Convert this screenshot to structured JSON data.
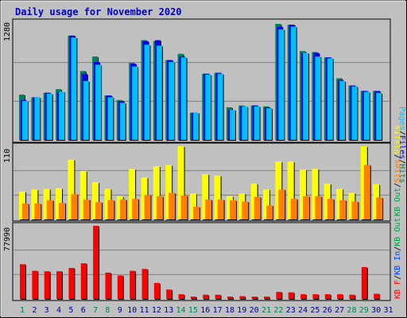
{
  "title": "Daily usage for November 2020",
  "colors": {
    "hits": "#00805c",
    "files": "#0000ff",
    "pages": "#00c0ff",
    "visits": "#ffff00",
    "sites": "#ff8000",
    "kb_in": "#0040ff",
    "kb_out": "#00a040",
    "kb_f": "#ff0000",
    "weekend_label": "#00805c",
    "weekday_label": "#000080",
    "title": "#0000c0",
    "panel_bg": "#c0c0c0"
  },
  "chart_data": [
    {
      "type": "bar",
      "panel": "top",
      "y_max_label": "1280",
      "legend": [
        "Pages",
        "/",
        "Files",
        "/",
        "Hits"
      ],
      "ylim": [
        0,
        1280
      ],
      "categories": [
        "1",
        "2",
        "3",
        "4",
        "5",
        "6",
        "7",
        "8",
        "9",
        "10",
        "11",
        "12",
        "13",
        "14",
        "15",
        "16",
        "17",
        "18",
        "19",
        "20",
        "21",
        "22",
        "23",
        "24",
        "25",
        "26",
        "27",
        "28",
        "29",
        "30",
        "31"
      ],
      "series": [
        {
          "name": "Hits",
          "values": [
            500,
            470,
            520,
            560,
            1150,
            760,
            920,
            490,
            440,
            850,
            1100,
            1090,
            880,
            950,
            300,
            730,
            740,
            360,
            380,
            380,
            370,
            1280,
            1270,
            980,
            970,
            910,
            680,
            600,
            540,
            540,
            0
          ]
        },
        {
          "name": "Files",
          "values": [
            440,
            470,
            520,
            530,
            1150,
            730,
            860,
            490,
            430,
            840,
            1090,
            1100,
            880,
            920,
            300,
            730,
            740,
            330,
            370,
            380,
            360,
            1250,
            1270,
            960,
            960,
            910,
            660,
            600,
            540,
            540,
            0
          ]
        },
        {
          "name": "Pages",
          "values": [
            430,
            470,
            510,
            530,
            1130,
            650,
            830,
            470,
            410,
            810,
            1050,
            1040,
            860,
            910,
            300,
            720,
            730,
            330,
            370,
            370,
            350,
            1220,
            1250,
            960,
            920,
            900,
            650,
            590,
            530,
            520,
            0
          ]
        }
      ]
    },
    {
      "type": "bar",
      "panel": "middle",
      "y_max_label": "110",
      "legend": [
        "Visits",
        "/",
        "Sites",
        "/",
        "KB Out"
      ],
      "ylim": [
        0,
        110
      ],
      "series": [
        {
          "name": "Visits",
          "values": [
            42,
            45,
            46,
            47,
            90,
            73,
            56,
            46,
            35,
            76,
            63,
            80,
            82,
            110,
            39,
            68,
            66,
            35,
            39,
            54,
            45,
            87,
            87,
            75,
            76,
            54,
            46,
            40,
            110,
            53,
            0
          ]
        },
        {
          "name": "Sites",
          "values": [
            24,
            24,
            29,
            25,
            38,
            30,
            26,
            29,
            30,
            31,
            37,
            35,
            40,
            36,
            19,
            30,
            30,
            29,
            27,
            34,
            21,
            45,
            31,
            35,
            35,
            31,
            29,
            27,
            82,
            33,
            0
          ]
        }
      ]
    },
    {
      "type": "bar",
      "panel": "bottom",
      "y_max_label": "77990",
      "legend": [
        "KB F",
        "/",
        "KB In",
        "/",
        "KB Out"
      ],
      "ylim": [
        0,
        77990
      ],
      "series": [
        {
          "name": "KB F",
          "values": [
            37000,
            30000,
            29500,
            29500,
            33000,
            38000,
            77990,
            28000,
            25000,
            30000,
            32000,
            17000,
            10000,
            5000,
            2500,
            4500,
            4500,
            2500,
            3000,
            2500,
            2500,
            7500,
            7000,
            5000,
            5000,
            5000,
            5000,
            4500,
            34000,
            5500,
            0
          ]
        }
      ]
    }
  ],
  "weekend_days": [
    "1",
    "7",
    "8",
    "14",
    "15",
    "21",
    "22",
    "28",
    "29"
  ]
}
